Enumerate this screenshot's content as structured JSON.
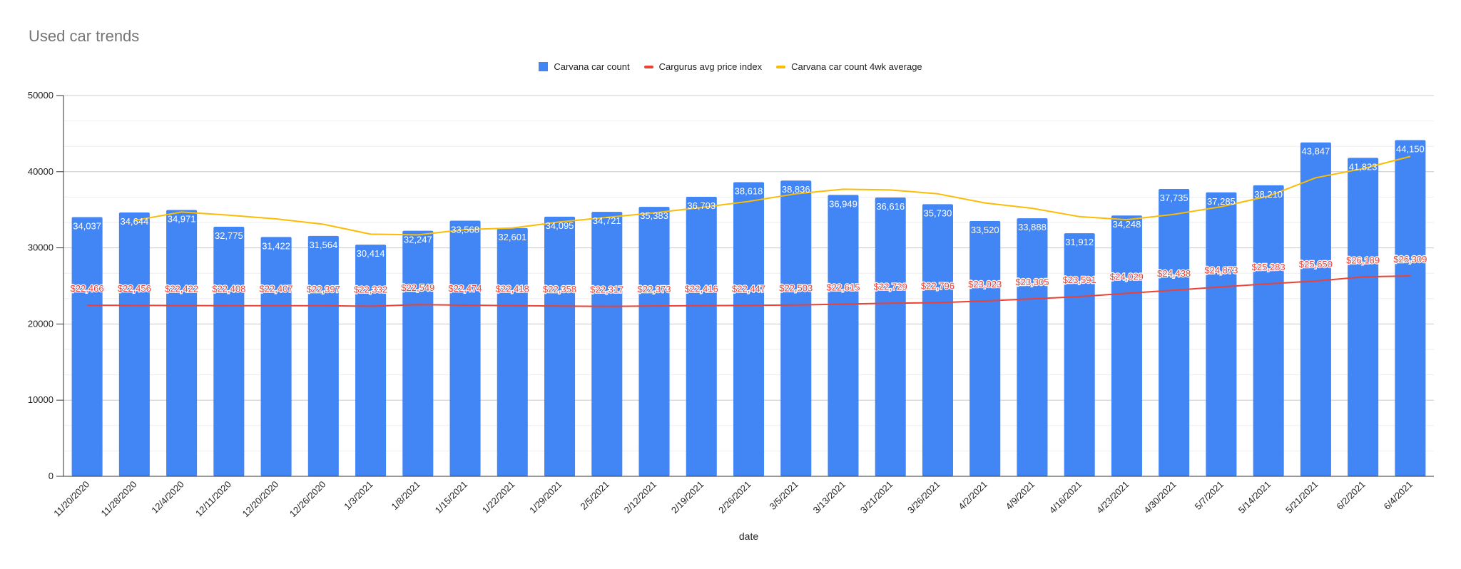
{
  "chart_data": {
    "type": "bar",
    "title": "Used car trends",
    "xlabel": "date",
    "ylabel": "",
    "ylim": [
      0,
      50000
    ],
    "yticks": [
      0,
      10000,
      20000,
      30000,
      40000,
      50000
    ],
    "grid": true,
    "legend_position": "top",
    "categories": [
      "11/20/2020",
      "11/28/2020",
      "12/4/2020",
      "12/11/2020",
      "12/20/2020",
      "12/26/2020",
      "1/3/2021",
      "1/8/2021",
      "1/15/2021",
      "1/22/2021",
      "1/29/2021",
      "2/5/2021",
      "2/12/2021",
      "2/19/2021",
      "2/26/2021",
      "3/5/2021",
      "3/13/2021",
      "3/21/2021",
      "3/26/2021",
      "4/2/2021",
      "4/9/2021",
      "4/16/2021",
      "4/23/2021",
      "4/30/2021",
      "5/7/2021",
      "5/14/2021",
      "5/21/2021",
      "6/2/2021",
      "6/4/2021"
    ],
    "series": [
      {
        "name": "Carvana car count",
        "type": "bar",
        "color": "#4285f4",
        "values": [
          34037,
          34644,
          34971,
          32775,
          31422,
          31564,
          30414,
          32247,
          33568,
          32601,
          34095,
          34721,
          35383,
          36703,
          38618,
          38836,
          36949,
          36616,
          35730,
          33520,
          33888,
          31912,
          34248,
          37735,
          37285,
          38210,
          43847,
          41823,
          44150
        ],
        "labels": [
          "34,037",
          "34,644",
          "34,971",
          "32,775",
          "31,422",
          "31,564",
          "30,414",
          "32,247",
          "33,568",
          "32,601",
          "34,095",
          "34,721",
          "35,383",
          "36,703",
          "38,618",
          "38,836",
          "36,949",
          "36,616",
          "35,730",
          "33,520",
          "33,888",
          "31,912",
          "34,248",
          "37,735",
          "37,285",
          "38,210",
          "43,847",
          "41,823",
          "44,150"
        ]
      },
      {
        "name": "Cargurus avg price index",
        "type": "line",
        "color": "#ea4335",
        "values": [
          22466,
          22456,
          22422,
          22408,
          22407,
          22397,
          22332,
          22549,
          22474,
          22418,
          22358,
          22317,
          22373,
          22416,
          22447,
          22503,
          22615,
          22729,
          22796,
          23023,
          23305,
          23591,
          24029,
          24438,
          24873,
          25283,
          25650,
          26189,
          26309
        ],
        "labels": [
          "$22,466",
          "$22,456",
          "$22,422",
          "$22,408",
          "$22,407",
          "$22,397",
          "$22,332",
          "$22,549",
          "$22,474",
          "$22,418",
          "$22,358",
          "$22,317",
          "$22,373",
          "$22,416",
          "$22,447",
          "$22,503",
          "$22,615",
          "$22,729",
          "$22,796",
          "$23,023",
          "$23,305",
          "$23,591",
          "$24,029",
          "$24,438",
          "$24,873",
          "$25,283",
          "$25,650",
          "$26,189",
          "$26,309"
        ]
      },
      {
        "name": "Carvana car count 4wk average",
        "type": "line",
        "color": "#fbbc04",
        "values": [
          null,
          33600,
          34700,
          34300,
          33800,
          33100,
          31800,
          31700,
          32400,
          32600,
          33400,
          34000,
          34600,
          35300,
          36100,
          37100,
          37700,
          37600,
          37100,
          35900,
          35200,
          34100,
          33700,
          34400,
          35400,
          36800,
          39200,
          40400,
          42000
        ]
      }
    ]
  }
}
